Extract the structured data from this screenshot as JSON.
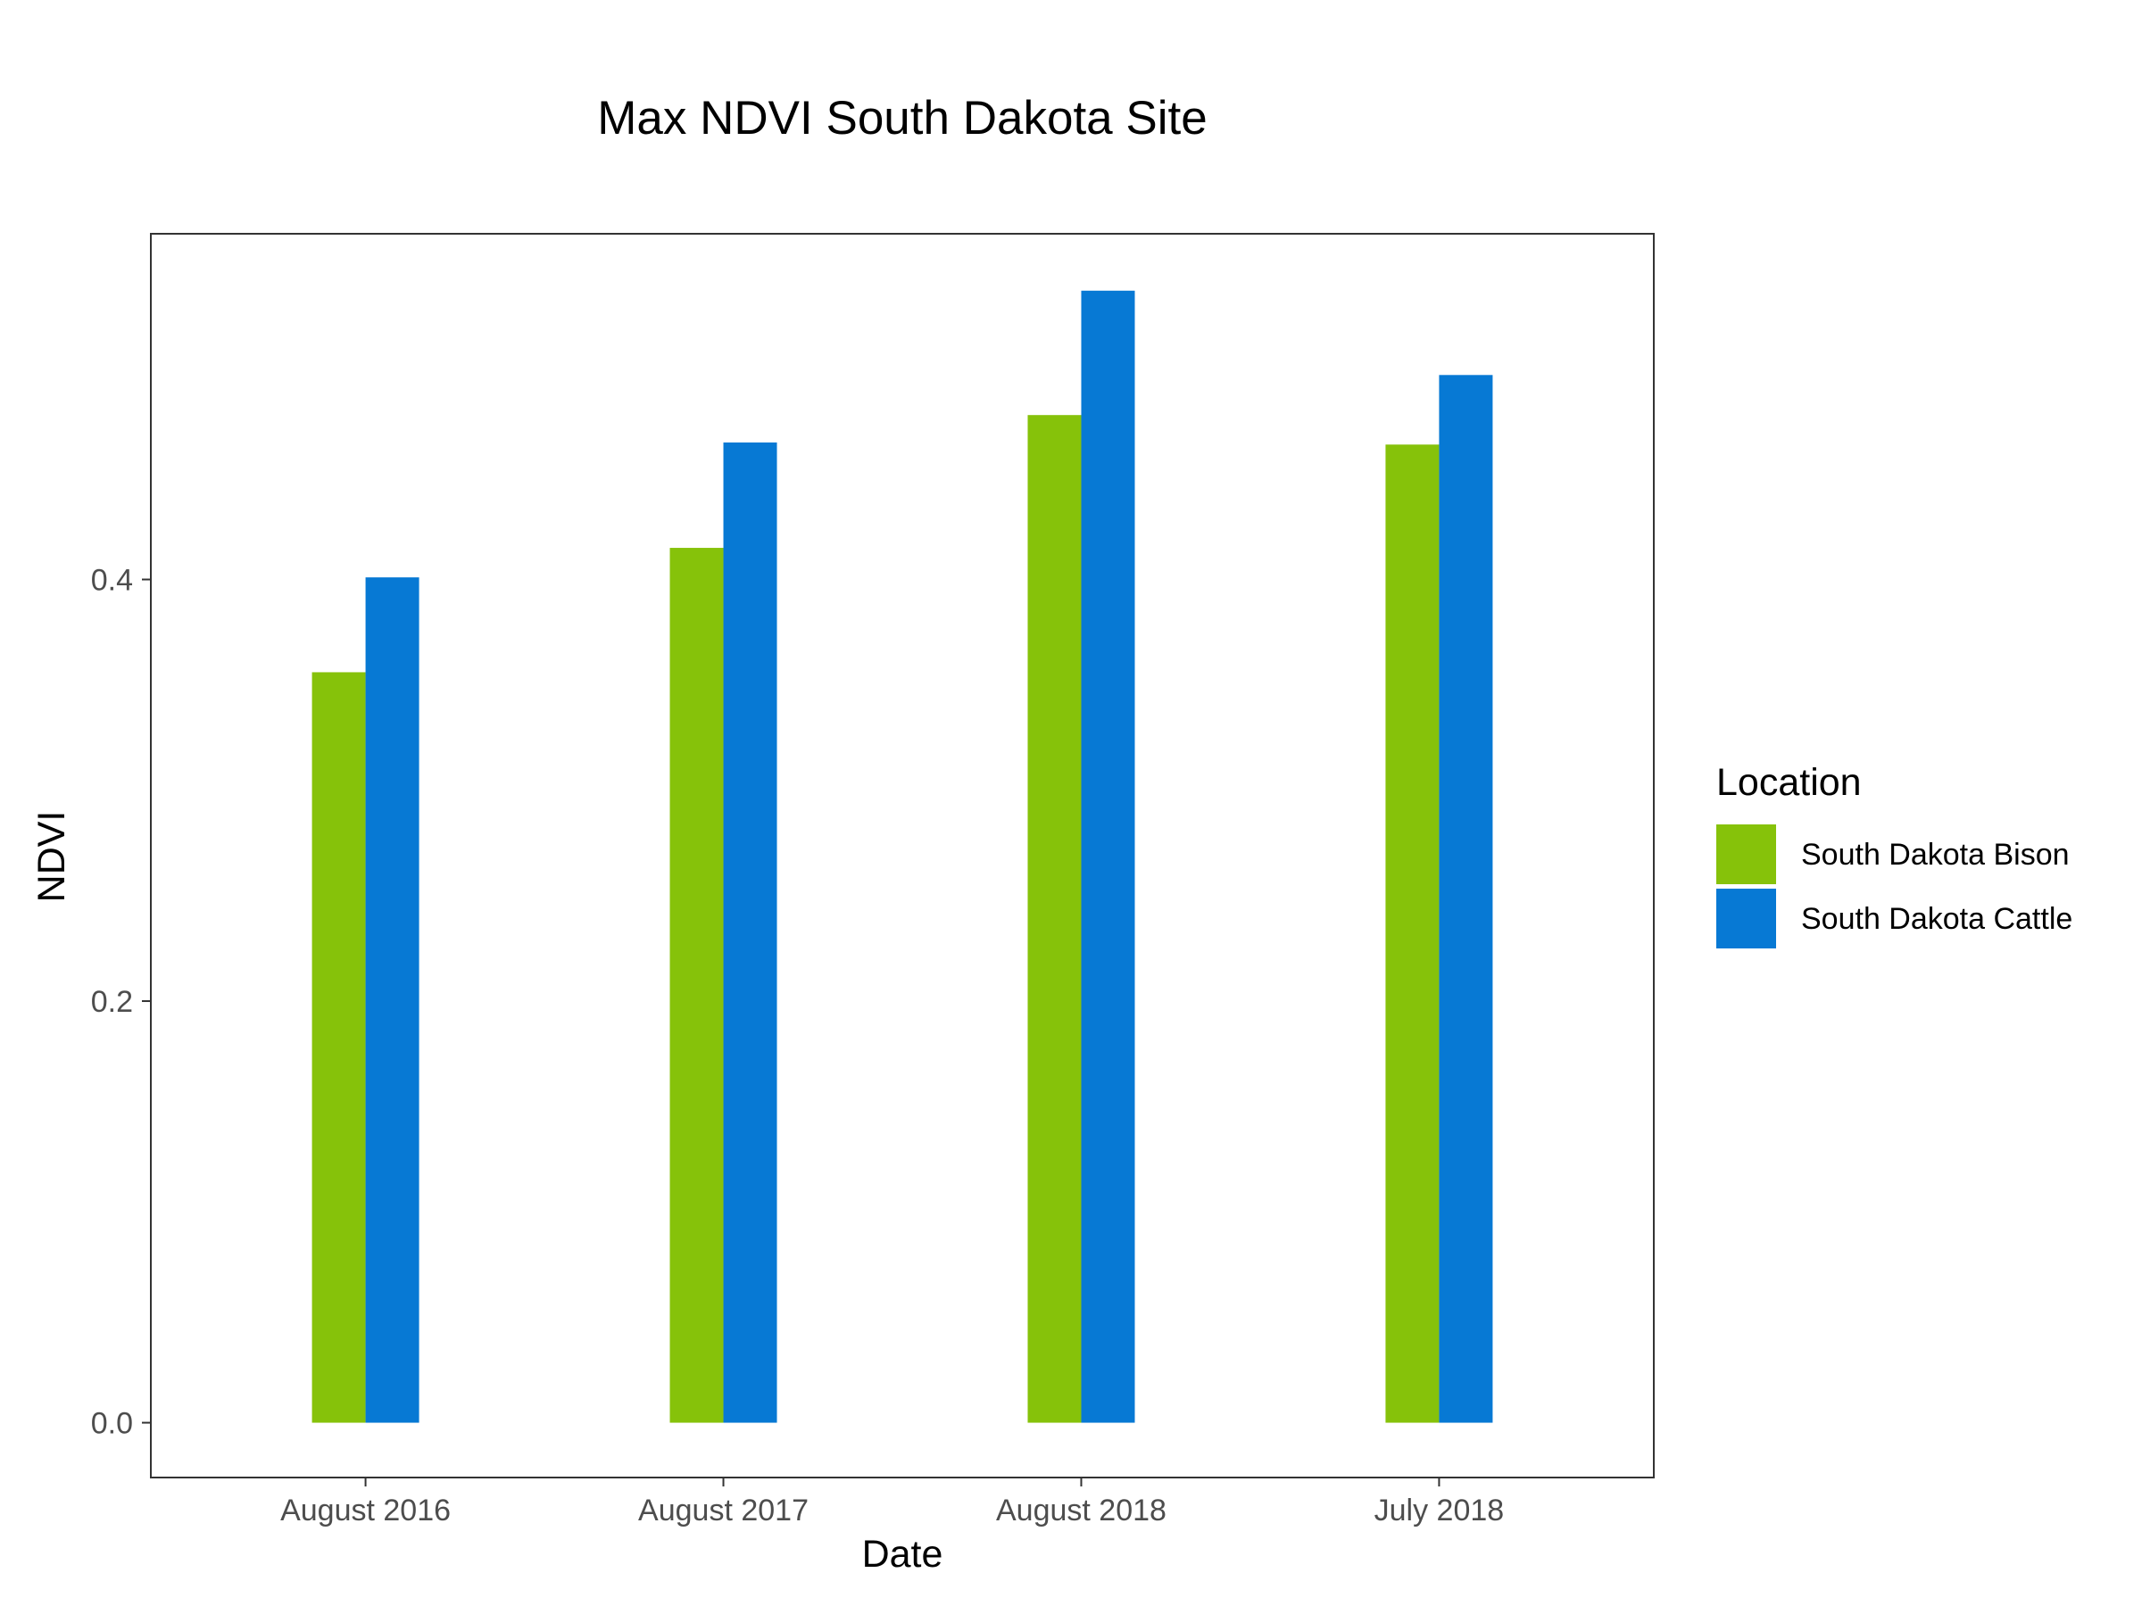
{
  "chart_data": {
    "type": "bar",
    "title": "Max NDVI South Dakota Site",
    "xlabel": "Date",
    "ylabel": "NDVI",
    "categories": [
      "August 2016",
      "August 2017",
      "August 2018",
      "July 2018"
    ],
    "series": [
      {
        "name": "South Dakota Bison",
        "color": "#86c20a",
        "values": [
          0.356,
          0.415,
          0.478,
          0.464
        ]
      },
      {
        "name": "South Dakota Cattle",
        "color": "#0779d4",
        "values": [
          0.401,
          0.465,
          0.537,
          0.497
        ]
      }
    ],
    "yticks": [
      0.0,
      0.2,
      0.4
    ],
    "ytick_labels": [
      "0.0",
      "0.2",
      "0.4"
    ],
    "ylim": [
      -0.026,
      0.564
    ],
    "grid": false,
    "legend": {
      "title": "Location",
      "position": "right"
    }
  }
}
